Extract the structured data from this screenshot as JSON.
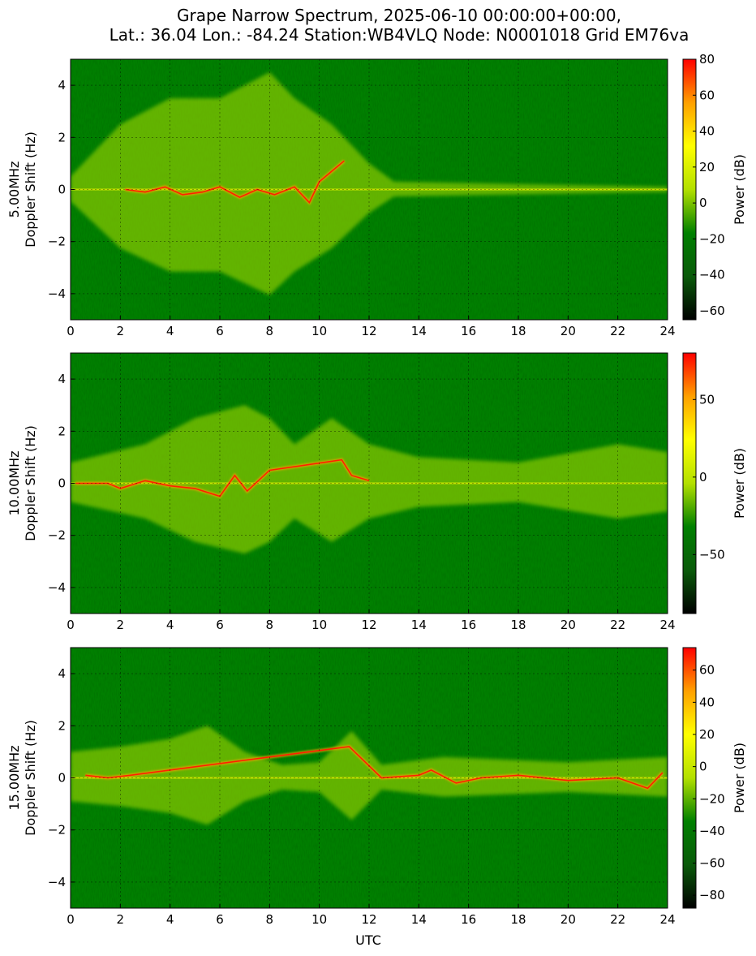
{
  "figure": {
    "title_line1": "Grape Narrow Spectrum, 2025-06-10 00:00:00+00:00,",
    "title_line2": "Lat.: 36.04 Lon.: -84.24 Station:WB4VLQ Node: N0001018 Grid EM76va",
    "xlabel": "UTC"
  },
  "colors": {
    "background": "#008000",
    "colormap": [
      "#000000",
      "#0a5a0a",
      "#008000",
      "#b3e000",
      "#ffff00",
      "#ffa000",
      "#ff0000"
    ]
  },
  "chart_data": [
    {
      "type": "heatmap",
      "frequency_label": "5.00MHz",
      "ylabel": "Doppler Shift (Hz)",
      "xlim": [
        0,
        24
      ],
      "ylim": [
        -5,
        5
      ],
      "x_ticks": [
        "0",
        "2",
        "4",
        "6",
        "8",
        "10",
        "12",
        "14",
        "16",
        "18",
        "20",
        "22",
        "24"
      ],
      "y_ticks": [
        "4",
        "2",
        "0",
        "−2",
        "−4"
      ],
      "grid": true,
      "colorbar": {
        "label": "Power (dB)",
        "range": [
          -65,
          80
        ],
        "ticks": [
          "80",
          "60",
          "40",
          "20",
          "0",
          "−20",
          "−40",
          "−60"
        ],
        "tick_values": [
          80,
          60,
          40,
          20,
          0,
          -20,
          -40,
          -60
        ]
      },
      "carrier_trace": [
        [
          2.2,
          0
        ],
        [
          3.0,
          -0.1
        ],
        [
          3.8,
          0.1
        ],
        [
          4.5,
          -0.2
        ],
        [
          5.3,
          -0.1
        ],
        [
          6.0,
          0.1
        ],
        [
          6.8,
          -0.3
        ],
        [
          7.5,
          0
        ],
        [
          8.2,
          -0.2
        ],
        [
          9.0,
          0.1
        ],
        [
          9.6,
          -0.5
        ],
        [
          10.0,
          0.3
        ],
        [
          10.5,
          0.7
        ],
        [
          11.0,
          1.1
        ]
      ],
      "broadening": [
        [
          0,
          0.5
        ],
        [
          2,
          2.5
        ],
        [
          4,
          3.5
        ],
        [
          6,
          3.5
        ],
        [
          8,
          4.5
        ],
        [
          9,
          3.5
        ],
        [
          10.5,
          2.5
        ],
        [
          12,
          1.0
        ],
        [
          13,
          0.3
        ],
        [
          24,
          0.1
        ]
      ]
    },
    {
      "type": "heatmap",
      "frequency_label": "10.00MHz",
      "ylabel": "Doppler Shift (Hz)",
      "xlim": [
        0,
        24
      ],
      "ylim": [
        -5,
        5
      ],
      "x_ticks": [
        "0",
        "2",
        "4",
        "6",
        "8",
        "10",
        "12",
        "14",
        "16",
        "18",
        "20",
        "22",
        "24"
      ],
      "y_ticks": [
        "4",
        "2",
        "0",
        "−2",
        "−4"
      ],
      "grid": true,
      "colorbar": {
        "label": "Power (dB)",
        "range": [
          -88,
          80
        ],
        "ticks": [
          "50",
          "0",
          "−50"
        ],
        "tick_values": [
          50,
          0,
          -50
        ]
      },
      "carrier_trace": [
        [
          0.2,
          0
        ],
        [
          1.5,
          0
        ],
        [
          2.0,
          -0.2
        ],
        [
          3.0,
          0.1
        ],
        [
          4.0,
          -0.1
        ],
        [
          5.0,
          -0.2
        ],
        [
          6.0,
          -0.5
        ],
        [
          6.6,
          0.3
        ],
        [
          7.1,
          -0.3
        ],
        [
          8.0,
          0.5
        ],
        [
          10.9,
          0.9
        ],
        [
          11.3,
          0.3
        ],
        [
          12.0,
          0.1
        ]
      ],
      "broadening": [
        [
          0,
          0.8
        ],
        [
          3,
          1.5
        ],
        [
          5,
          2.5
        ],
        [
          7,
          3.0
        ],
        [
          8,
          2.5
        ],
        [
          9,
          1.5
        ],
        [
          10.5,
          2.5
        ],
        [
          12,
          1.5
        ],
        [
          14,
          1.0
        ],
        [
          18,
          0.8
        ],
        [
          22,
          1.5
        ],
        [
          24,
          1.2
        ]
      ]
    },
    {
      "type": "heatmap",
      "frequency_label": "15.00MHz",
      "ylabel": "Doppler Shift (Hz)",
      "xlim": [
        0,
        24
      ],
      "ylim": [
        -5,
        5
      ],
      "x_ticks": [
        "0",
        "2",
        "4",
        "6",
        "8",
        "10",
        "12",
        "14",
        "16",
        "18",
        "20",
        "22",
        "24"
      ],
      "y_ticks": [
        "4",
        "2",
        "0",
        "−2",
        "−4"
      ],
      "grid": true,
      "colorbar": {
        "label": "Power (dB)",
        "range": [
          -88,
          74
        ],
        "ticks": [
          "60",
          "40",
          "20",
          "0",
          "−20",
          "−40",
          "−60",
          "−80"
        ],
        "tick_values": [
          60,
          40,
          20,
          0,
          -20,
          -40,
          -60,
          -80
        ]
      },
      "carrier_trace": [
        [
          0.6,
          0.1
        ],
        [
          1.5,
          0
        ],
        [
          2.4,
          0.1
        ],
        [
          11.2,
          1.2
        ],
        [
          12.5,
          0
        ],
        [
          14.0,
          0.1
        ],
        [
          14.5,
          0.3
        ],
        [
          15.5,
          -0.2
        ],
        [
          16.5,
          0
        ],
        [
          18.0,
          0.1
        ],
        [
          20.0,
          -0.1
        ],
        [
          22.0,
          0
        ],
        [
          23.2,
          -0.4
        ],
        [
          23.8,
          0.2
        ]
      ],
      "broadening": [
        [
          0,
          1.0
        ],
        [
          2,
          1.2
        ],
        [
          4,
          1.5
        ],
        [
          5.5,
          2.0
        ],
        [
          7,
          1.0
        ],
        [
          8.5,
          0.5
        ],
        [
          10,
          0.6
        ],
        [
          11.3,
          1.8
        ],
        [
          12.5,
          0.5
        ],
        [
          15,
          0.8
        ],
        [
          20,
          0.6
        ],
        [
          24,
          0.8
        ]
      ]
    }
  ]
}
